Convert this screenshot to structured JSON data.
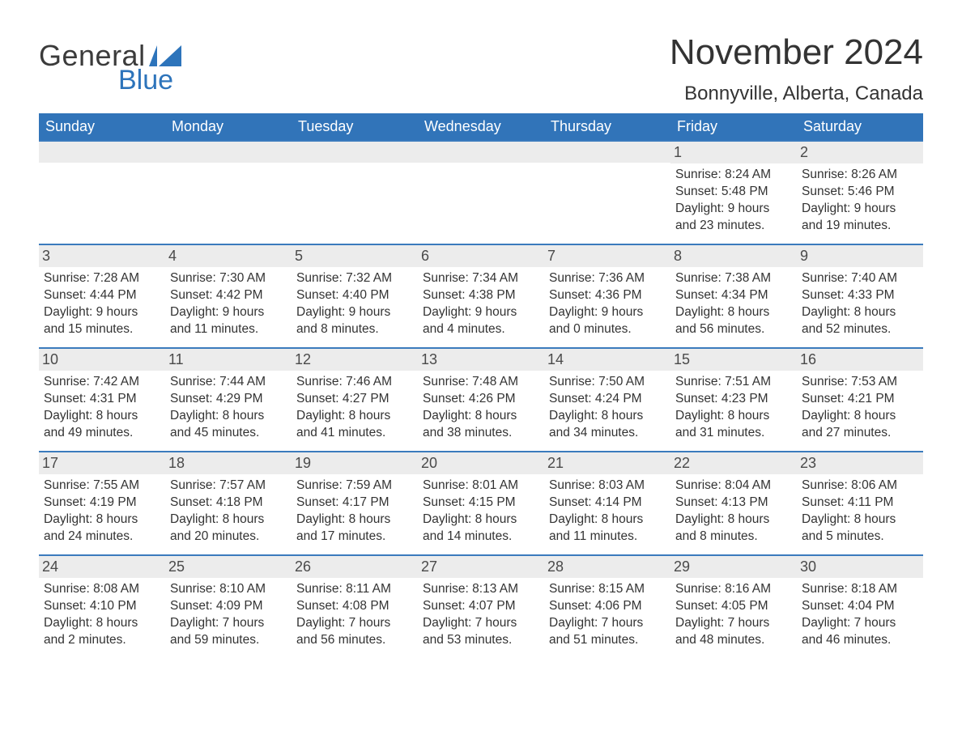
{
  "logo": {
    "text1": "General",
    "text2": "Blue",
    "icon_color": "#2d74bb",
    "text1_color": "#3b3b3b",
    "text2_color": "#2d74bb"
  },
  "title": "November 2024",
  "location": "Bonnyville, Alberta, Canada",
  "colors": {
    "header_bg": "#3174b9",
    "header_text": "#ffffff",
    "daynum_bg": "#ececec",
    "daynum_border": "#3b7bbd",
    "body_text": "#333333",
    "background": "#ffffff"
  },
  "weekdays": [
    "Sunday",
    "Monday",
    "Tuesday",
    "Wednesday",
    "Thursday",
    "Friday",
    "Saturday"
  ],
  "weeks": [
    [
      {
        "day": "",
        "sunrise": "",
        "sunset": "",
        "daylight1": "",
        "daylight2": ""
      },
      {
        "day": "",
        "sunrise": "",
        "sunset": "",
        "daylight1": "",
        "daylight2": ""
      },
      {
        "day": "",
        "sunrise": "",
        "sunset": "",
        "daylight1": "",
        "daylight2": ""
      },
      {
        "day": "",
        "sunrise": "",
        "sunset": "",
        "daylight1": "",
        "daylight2": ""
      },
      {
        "day": "",
        "sunrise": "",
        "sunset": "",
        "daylight1": "",
        "daylight2": ""
      },
      {
        "day": "1",
        "sunrise": "Sunrise: 8:24 AM",
        "sunset": "Sunset: 5:48 PM",
        "daylight1": "Daylight: 9 hours",
        "daylight2": "and 23 minutes."
      },
      {
        "day": "2",
        "sunrise": "Sunrise: 8:26 AM",
        "sunset": "Sunset: 5:46 PM",
        "daylight1": "Daylight: 9 hours",
        "daylight2": "and 19 minutes."
      }
    ],
    [
      {
        "day": "3",
        "sunrise": "Sunrise: 7:28 AM",
        "sunset": "Sunset: 4:44 PM",
        "daylight1": "Daylight: 9 hours",
        "daylight2": "and 15 minutes."
      },
      {
        "day": "4",
        "sunrise": "Sunrise: 7:30 AM",
        "sunset": "Sunset: 4:42 PM",
        "daylight1": "Daylight: 9 hours",
        "daylight2": "and 11 minutes."
      },
      {
        "day": "5",
        "sunrise": "Sunrise: 7:32 AM",
        "sunset": "Sunset: 4:40 PM",
        "daylight1": "Daylight: 9 hours",
        "daylight2": "and 8 minutes."
      },
      {
        "day": "6",
        "sunrise": "Sunrise: 7:34 AM",
        "sunset": "Sunset: 4:38 PM",
        "daylight1": "Daylight: 9 hours",
        "daylight2": "and 4 minutes."
      },
      {
        "day": "7",
        "sunrise": "Sunrise: 7:36 AM",
        "sunset": "Sunset: 4:36 PM",
        "daylight1": "Daylight: 9 hours",
        "daylight2": "and 0 minutes."
      },
      {
        "day": "8",
        "sunrise": "Sunrise: 7:38 AM",
        "sunset": "Sunset: 4:34 PM",
        "daylight1": "Daylight: 8 hours",
        "daylight2": "and 56 minutes."
      },
      {
        "day": "9",
        "sunrise": "Sunrise: 7:40 AM",
        "sunset": "Sunset: 4:33 PM",
        "daylight1": "Daylight: 8 hours",
        "daylight2": "and 52 minutes."
      }
    ],
    [
      {
        "day": "10",
        "sunrise": "Sunrise: 7:42 AM",
        "sunset": "Sunset: 4:31 PM",
        "daylight1": "Daylight: 8 hours",
        "daylight2": "and 49 minutes."
      },
      {
        "day": "11",
        "sunrise": "Sunrise: 7:44 AM",
        "sunset": "Sunset: 4:29 PM",
        "daylight1": "Daylight: 8 hours",
        "daylight2": "and 45 minutes."
      },
      {
        "day": "12",
        "sunrise": "Sunrise: 7:46 AM",
        "sunset": "Sunset: 4:27 PM",
        "daylight1": "Daylight: 8 hours",
        "daylight2": "and 41 minutes."
      },
      {
        "day": "13",
        "sunrise": "Sunrise: 7:48 AM",
        "sunset": "Sunset: 4:26 PM",
        "daylight1": "Daylight: 8 hours",
        "daylight2": "and 38 minutes."
      },
      {
        "day": "14",
        "sunrise": "Sunrise: 7:50 AM",
        "sunset": "Sunset: 4:24 PM",
        "daylight1": "Daylight: 8 hours",
        "daylight2": "and 34 minutes."
      },
      {
        "day": "15",
        "sunrise": "Sunrise: 7:51 AM",
        "sunset": "Sunset: 4:23 PM",
        "daylight1": "Daylight: 8 hours",
        "daylight2": "and 31 minutes."
      },
      {
        "day": "16",
        "sunrise": "Sunrise: 7:53 AM",
        "sunset": "Sunset: 4:21 PM",
        "daylight1": "Daylight: 8 hours",
        "daylight2": "and 27 minutes."
      }
    ],
    [
      {
        "day": "17",
        "sunrise": "Sunrise: 7:55 AM",
        "sunset": "Sunset: 4:19 PM",
        "daylight1": "Daylight: 8 hours",
        "daylight2": "and 24 minutes."
      },
      {
        "day": "18",
        "sunrise": "Sunrise: 7:57 AM",
        "sunset": "Sunset: 4:18 PM",
        "daylight1": "Daylight: 8 hours",
        "daylight2": "and 20 minutes."
      },
      {
        "day": "19",
        "sunrise": "Sunrise: 7:59 AM",
        "sunset": "Sunset: 4:17 PM",
        "daylight1": "Daylight: 8 hours",
        "daylight2": "and 17 minutes."
      },
      {
        "day": "20",
        "sunrise": "Sunrise: 8:01 AM",
        "sunset": "Sunset: 4:15 PM",
        "daylight1": "Daylight: 8 hours",
        "daylight2": "and 14 minutes."
      },
      {
        "day": "21",
        "sunrise": "Sunrise: 8:03 AM",
        "sunset": "Sunset: 4:14 PM",
        "daylight1": "Daylight: 8 hours",
        "daylight2": "and 11 minutes."
      },
      {
        "day": "22",
        "sunrise": "Sunrise: 8:04 AM",
        "sunset": "Sunset: 4:13 PM",
        "daylight1": "Daylight: 8 hours",
        "daylight2": "and 8 minutes."
      },
      {
        "day": "23",
        "sunrise": "Sunrise: 8:06 AM",
        "sunset": "Sunset: 4:11 PM",
        "daylight1": "Daylight: 8 hours",
        "daylight2": "and 5 minutes."
      }
    ],
    [
      {
        "day": "24",
        "sunrise": "Sunrise: 8:08 AM",
        "sunset": "Sunset: 4:10 PM",
        "daylight1": "Daylight: 8 hours",
        "daylight2": "and 2 minutes."
      },
      {
        "day": "25",
        "sunrise": "Sunrise: 8:10 AM",
        "sunset": "Sunset: 4:09 PM",
        "daylight1": "Daylight: 7 hours",
        "daylight2": "and 59 minutes."
      },
      {
        "day": "26",
        "sunrise": "Sunrise: 8:11 AM",
        "sunset": "Sunset: 4:08 PM",
        "daylight1": "Daylight: 7 hours",
        "daylight2": "and 56 minutes."
      },
      {
        "day": "27",
        "sunrise": "Sunrise: 8:13 AM",
        "sunset": "Sunset: 4:07 PM",
        "daylight1": "Daylight: 7 hours",
        "daylight2": "and 53 minutes."
      },
      {
        "day": "28",
        "sunrise": "Sunrise: 8:15 AM",
        "sunset": "Sunset: 4:06 PM",
        "daylight1": "Daylight: 7 hours",
        "daylight2": "and 51 minutes."
      },
      {
        "day": "29",
        "sunrise": "Sunrise: 8:16 AM",
        "sunset": "Sunset: 4:05 PM",
        "daylight1": "Daylight: 7 hours",
        "daylight2": "and 48 minutes."
      },
      {
        "day": "30",
        "sunrise": "Sunrise: 8:18 AM",
        "sunset": "Sunset: 4:04 PM",
        "daylight1": "Daylight: 7 hours",
        "daylight2": "and 46 minutes."
      }
    ]
  ]
}
